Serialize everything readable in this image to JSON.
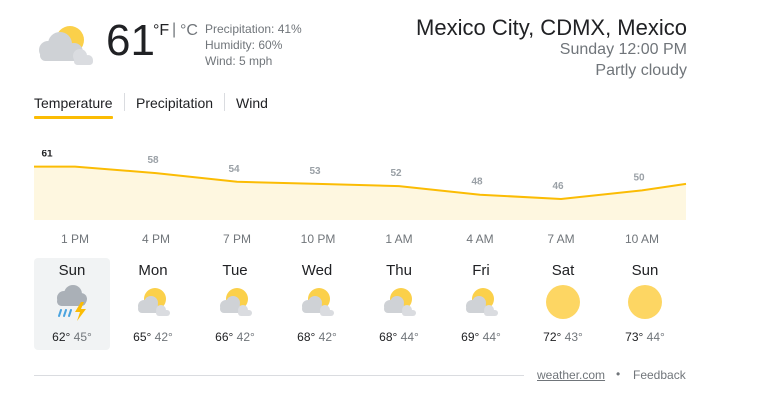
{
  "current": {
    "icon": "partly-cloudy-icon",
    "temp": "61",
    "unit_f": "°F",
    "unit_sep": "|",
    "unit_c": "°C",
    "precipitation": "Precipitation: 41%",
    "humidity": "Humidity: 60%",
    "wind": "Wind: 5 mph"
  },
  "location": {
    "name": "Mexico City, CDMX, Mexico",
    "time": "Sunday 12:00 PM",
    "condition": "Partly cloudy"
  },
  "tabs": [
    {
      "label": "Temperature",
      "selected": true
    },
    {
      "label": "Precipitation",
      "selected": false
    },
    {
      "label": "Wind",
      "selected": false
    }
  ],
  "chart_data": {
    "type": "area",
    "unit": "°F",
    "x": [
      "1 PM",
      "4 PM",
      "7 PM",
      "10 PM",
      "1 AM",
      "4 AM",
      "7 AM",
      "10 AM"
    ],
    "values": [
      61,
      58,
      54,
      53,
      52,
      48,
      46,
      50
    ],
    "ylim": [
      40,
      65
    ],
    "grid": false,
    "line_color": "#fbbc04",
    "fill_color": "#fef7e0"
  },
  "days": [
    {
      "name": "Sun",
      "icon": "thunderstorm-rain-icon",
      "high": "62°",
      "low": "45°",
      "selected": true
    },
    {
      "name": "Mon",
      "icon": "partly-cloudy-icon",
      "high": "65°",
      "low": "42°",
      "selected": false
    },
    {
      "name": "Tue",
      "icon": "partly-cloudy-icon",
      "high": "66°",
      "low": "42°",
      "selected": false
    },
    {
      "name": "Wed",
      "icon": "partly-cloudy-icon",
      "high": "68°",
      "low": "42°",
      "selected": false
    },
    {
      "name": "Thu",
      "icon": "partly-cloudy-icon",
      "high": "68°",
      "low": "44°",
      "selected": false
    },
    {
      "name": "Fri",
      "icon": "partly-cloudy-icon",
      "high": "69°",
      "low": "44°",
      "selected": false
    },
    {
      "name": "Sat",
      "icon": "sunny-icon",
      "high": "72°",
      "low": "43°",
      "selected": false
    },
    {
      "name": "Sun",
      "icon": "sunny-icon",
      "high": "73°",
      "low": "44°",
      "selected": false
    }
  ],
  "footer": {
    "source": "weather.com",
    "separator": "•",
    "feedback": "Feedback"
  }
}
